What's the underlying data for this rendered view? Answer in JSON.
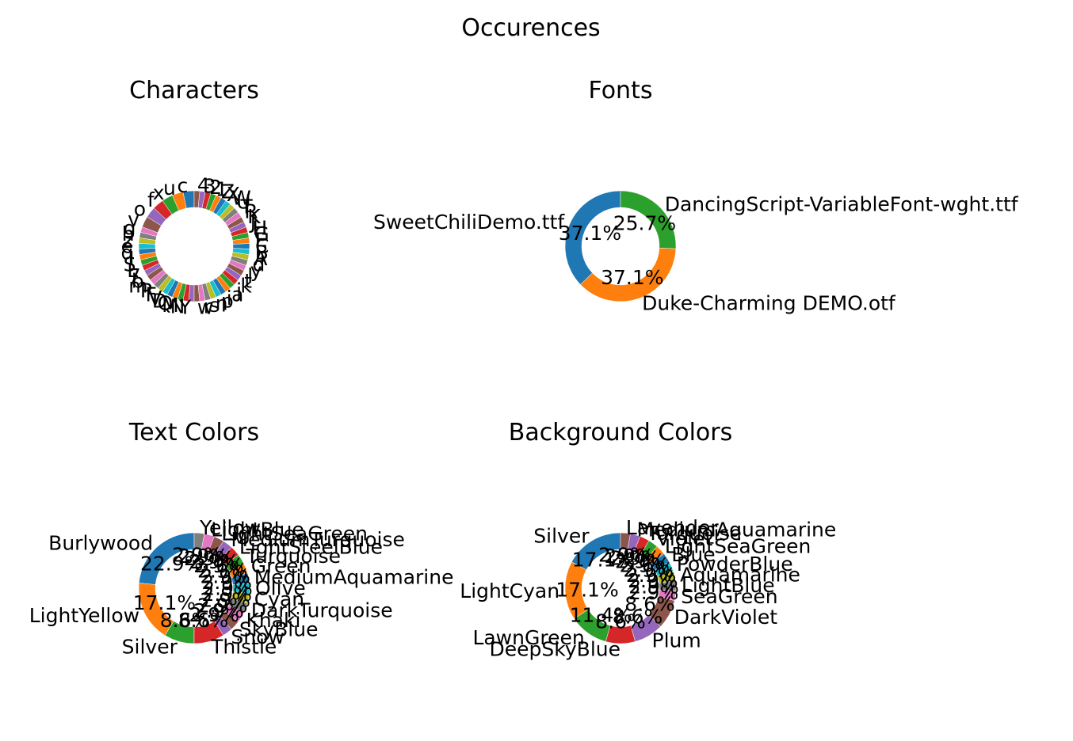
{
  "figure": {
    "title": "Occurences"
  },
  "palette": [
    "#1f77b4",
    "#ff7f0e",
    "#2ca02c",
    "#d62728",
    "#9467bd",
    "#8c564b",
    "#e377c2",
    "#7f7f7f",
    "#bcbd22",
    "#17becf"
  ],
  "chart_data": [
    {
      "id": "characters",
      "type": "pie",
      "donut": true,
      "title": "Characters",
      "labels": [
        "c",
        "u",
        "x",
        "f",
        "o",
        "v",
        "g",
        "h",
        "z",
        "e",
        "q",
        "I",
        "S",
        "L",
        "7",
        "b",
        "m",
        "P",
        "F",
        "V",
        "D",
        "Q",
        "M",
        "N",
        "Y",
        "w",
        "r",
        "s",
        "n",
        "p",
        "i",
        "a",
        "j",
        "k",
        "t",
        "l",
        "y",
        "d",
        "A",
        "B",
        "C",
        "E",
        "G",
        "H",
        "J",
        "K",
        "R",
        "T",
        "U",
        "W",
        "X",
        "Z",
        "1",
        "2",
        "3",
        "4"
      ],
      "values": [
        2,
        2,
        2,
        2,
        2,
        2,
        1,
        1,
        1,
        1,
        1,
        1,
        1,
        1,
        1,
        1,
        1,
        1,
        1,
        1,
        1,
        1,
        1,
        1,
        1,
        1,
        1,
        1,
        1,
        1,
        1,
        1,
        1,
        1,
        1,
        1,
        1,
        1,
        1,
        1,
        1,
        1,
        1,
        1,
        1,
        1,
        1,
        1,
        1,
        1,
        1,
        1,
        1,
        1,
        1,
        1
      ],
      "startangle": 90,
      "counterclock": true
    },
    {
      "id": "fonts",
      "type": "pie",
      "donut": true,
      "title": "Fonts",
      "labels": [
        "SweetChiliDemo.ttf",
        "Duke-Charming DEMO.otf",
        "DancingScript-VariableFont-wght.ttf"
      ],
      "values": [
        13,
        13,
        9
      ],
      "pct_labels": [
        "37.1%",
        "37.1%",
        "25.7%"
      ],
      "startangle": 90,
      "counterclock": true
    },
    {
      "id": "text-colors",
      "type": "pie",
      "donut": true,
      "title": "Text Colors",
      "labels": [
        "Burlywood",
        "LightYellow",
        "Silver",
        "Thistle",
        "Snow",
        "SkyBlue",
        "Khaki",
        "DarkTurquoise",
        "Cyan",
        "Olive",
        "MediumAquamarine",
        "Green",
        "Turquoise",
        "LightSteelBlue",
        "MediumTurquoise",
        "LightSeaGreen",
        "LightBlue",
        "Yellow"
      ],
      "values": [
        8,
        6,
        3,
        3,
        1,
        1,
        1,
        1,
        1,
        1,
        1,
        1,
        1,
        1,
        1,
        1,
        1,
        1
      ],
      "pct_labels": [
        "22.9%",
        "17.1%",
        "8.6%",
        "8.6%",
        "2.9%",
        "2.9%",
        "2.9%",
        "2.9%",
        "2.9%",
        "2.9%",
        "2.9%",
        "2.9%",
        "2.9%",
        "2.9%",
        "2.9%",
        "2.9%",
        "2.9%",
        "2.9%"
      ],
      "startangle": 90,
      "counterclock": true
    },
    {
      "id": "background-colors",
      "type": "pie",
      "donut": true,
      "title": "Background Colors",
      "labels": [
        "Silver",
        "LightCyan",
        "LawnGreen",
        "DeepSkyBlue",
        "Plum",
        "DarkViolet",
        "SeaGreen",
        "LightBlue",
        "Aquamarine",
        "PowderBlue",
        "Blue",
        "LightSeaGreen",
        "Violet",
        "Turquoise",
        "MediumAquamarine",
        "Lavender"
      ],
      "values": [
        6,
        6,
        4,
        3,
        3,
        3,
        1,
        1,
        1,
        1,
        1,
        1,
        1,
        1,
        1,
        1
      ],
      "pct_labels": [
        "17.1%",
        "17.1%",
        "11.4%",
        "8.6%",
        "8.6%",
        "8.6%",
        "2.9%",
        "2.9%",
        "2.9%",
        "2.9%",
        "2.9%",
        "2.9%",
        "2.9%",
        "2.9%",
        "2.9%",
        "2.9%"
      ],
      "startangle": 90,
      "counterclock": true
    }
  ]
}
